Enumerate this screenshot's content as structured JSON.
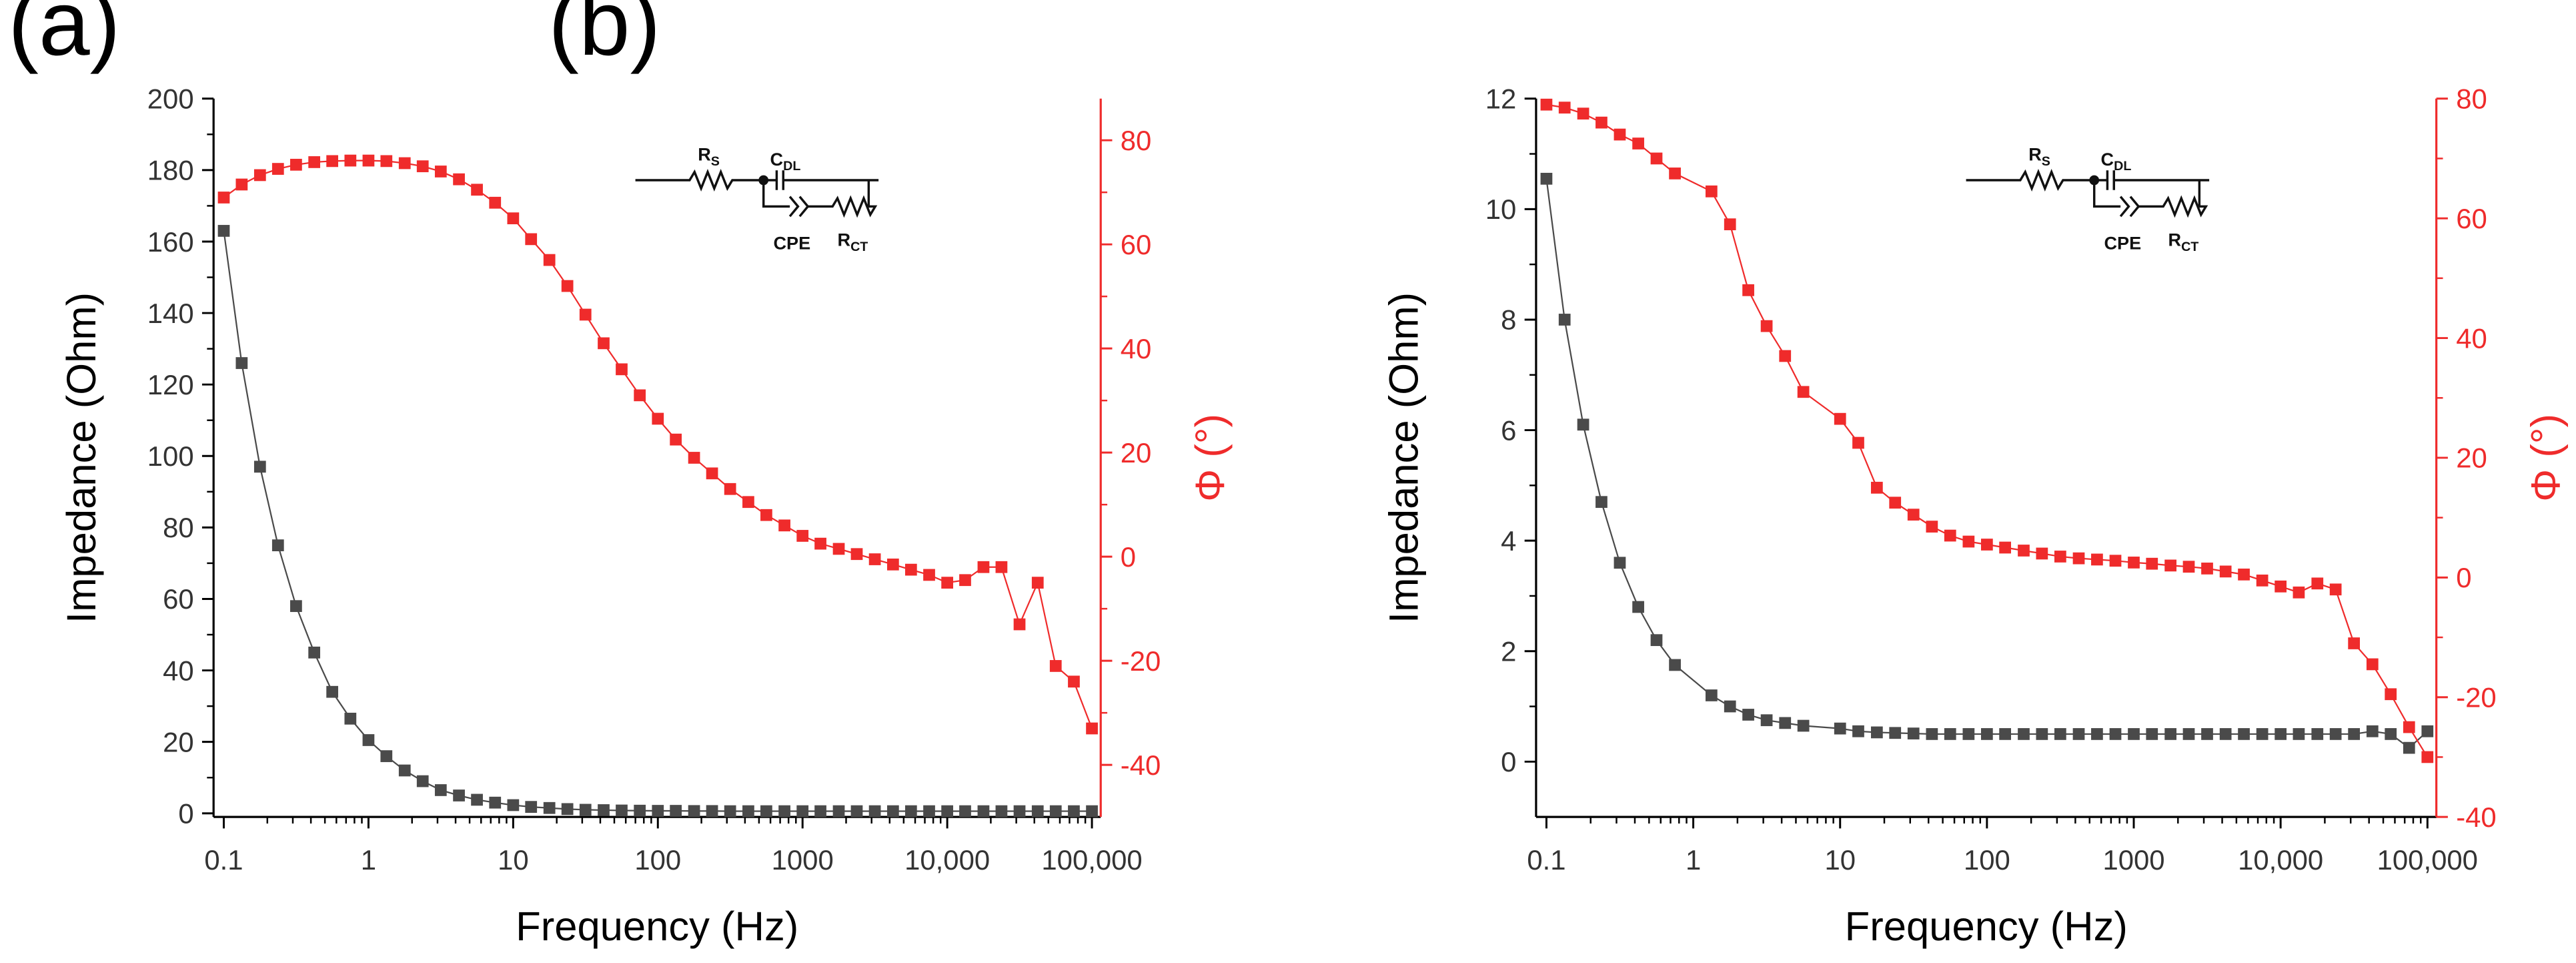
{
  "colors": {
    "impedance": "#4a4a4a",
    "phase": "#ef2b2b",
    "axis": "#000000",
    "phase_axis": "#ef2b2b"
  },
  "circuit": {
    "rs_label": "R",
    "rs_sub": "S",
    "cdl_label": "C",
    "cdl_sub": "DL",
    "cpe_label": "CPE",
    "rct_label": "R",
    "rct_sub": "CT"
  },
  "chart_data": [
    {
      "panel_label": "(a)",
      "type": "scatter",
      "xscale": "log",
      "xlabel": "Frequency (Hz)",
      "ylabel": "Impedance (Ohm)",
      "y2label": "Φ (°)",
      "xlim": [
        0.085,
        115000
      ],
      "ylim": [
        -1,
        200
      ],
      "y2lim": [
        -50,
        88
      ],
      "xticks": [
        0.1,
        1,
        10,
        100,
        1000,
        10000,
        100000
      ],
      "xticklabels": [
        "0.1",
        "1",
        "10",
        "100",
        "1000",
        "10,000",
        "100,000"
      ],
      "yticks": [
        0,
        20,
        40,
        60,
        80,
        100,
        120,
        140,
        160,
        180,
        200
      ],
      "yticklabels": [
        "0",
        "20",
        "40",
        "60",
        "80",
        "100",
        "120",
        "140",
        "160",
        "180",
        "200"
      ],
      "y2ticks": [
        -40,
        -20,
        0,
        20,
        40,
        60,
        80
      ],
      "y2ticklabels": [
        "-40",
        "-20",
        "0",
        "20",
        "40",
        "60",
        "80"
      ],
      "series": [
        {
          "name": "Impedance",
          "axis": "left",
          "x": [
            0.1,
            0.133,
            0.178,
            0.237,
            0.316,
            0.422,
            0.562,
            0.75,
            1,
            1.33,
            1.78,
            2.37,
            3.16,
            4.22,
            5.62,
            7.5,
            10,
            13.3,
            17.8,
            23.7,
            31.6,
            42.2,
            56.2,
            75,
            100,
            133,
            178,
            237,
            316,
            422,
            562,
            750,
            1000,
            1330,
            1780,
            2370,
            3160,
            4220,
            5620,
            7500,
            10000,
            13300,
            17800,
            23700,
            31600,
            42200,
            56200,
            75000,
            100000
          ],
          "y": [
            163,
            126,
            97,
            75,
            58,
            45,
            34,
            26.5,
            20.5,
            16,
            12,
            9,
            6.5,
            5,
            3.8,
            3,
            2.3,
            1.8,
            1.5,
            1.2,
            1.0,
            0.9,
            0.8,
            0.75,
            0.7,
            0.7,
            0.65,
            0.65,
            0.6,
            0.6,
            0.6,
            0.6,
            0.6,
            0.6,
            0.6,
            0.6,
            0.6,
            0.6,
            0.6,
            0.6,
            0.6,
            0.6,
            0.6,
            0.6,
            0.6,
            0.6,
            0.6,
            0.6,
            0.6
          ]
        },
        {
          "name": "Phase",
          "axis": "right",
          "x": [
            0.1,
            0.133,
            0.178,
            0.237,
            0.316,
            0.422,
            0.562,
            0.75,
            1,
            1.33,
            1.78,
            2.37,
            3.16,
            4.22,
            5.62,
            7.5,
            10,
            13.3,
            17.8,
            23.7,
            31.6,
            42.2,
            56.2,
            75,
            100,
            133,
            178,
            237,
            316,
            422,
            562,
            750,
            1000,
            1330,
            1780,
            2370,
            3160,
            4220,
            5620,
            7500,
            10000,
            13300,
            17800,
            23700,
            31600,
            42200,
            56200,
            75000,
            100000
          ],
          "y": [
            69,
            71.5,
            73.3,
            74.5,
            75.3,
            75.8,
            76,
            76.1,
            76.1,
            76,
            75.6,
            75,
            74,
            72.5,
            70.5,
            68,
            65,
            61,
            57,
            52,
            46.5,
            41,
            36,
            31,
            26.5,
            22.5,
            19,
            16,
            13,
            10.5,
            8,
            6,
            4,
            2.5,
            1.5,
            0.5,
            -0.5,
            -1.5,
            -2.5,
            -3.5,
            -5,
            -4.5,
            -2,
            -2,
            -13,
            -5,
            -21,
            -24,
            -33
          ]
        }
      ]
    },
    {
      "panel_label": "(b)",
      "type": "scatter",
      "xscale": "log",
      "xlabel": "Frequency (Hz)",
      "ylabel": "Impedance (Ohm)",
      "y2label": "Φ (°)",
      "xlim": [
        0.085,
        115000
      ],
      "ylim": [
        -1,
        12
      ],
      "y2lim": [
        -40,
        80
      ],
      "xticks": [
        0.1,
        1,
        10,
        100,
        1000,
        10000,
        100000
      ],
      "xticklabels": [
        "0.1",
        "1",
        "10",
        "100",
        "1000",
        "10,000",
        "100,000"
      ],
      "yticks": [
        0,
        2,
        4,
        6,
        8,
        10,
        12
      ],
      "yticklabels": [
        "0",
        "2",
        "4",
        "6",
        "8",
        "10",
        "12"
      ],
      "y2ticks": [
        -40,
        -20,
        0,
        20,
        40,
        60,
        80
      ],
      "y2ticklabels": [
        "-40",
        "-20",
        "0",
        "20",
        "40",
        "60",
        "80"
      ],
      "series": [
        {
          "name": "Impedance",
          "axis": "left",
          "x": [
            0.1,
            0.133,
            0.178,
            0.237,
            0.316,
            0.422,
            0.562,
            0.75,
            1.33,
            1.78,
            2.37,
            3.16,
            4.22,
            5.62,
            10,
            13.3,
            17.8,
            23.7,
            31.6,
            42.2,
            56.2,
            75,
            100,
            133,
            178,
            237,
            316,
            422,
            562,
            750,
            1000,
            1330,
            1780,
            2370,
            3160,
            4220,
            5620,
            7500,
            10000,
            13300,
            17800,
            23700,
            31600,
            42200,
            56200,
            75000,
            100000
          ],
          "y": [
            10.55,
            8.0,
            6.1,
            4.7,
            3.6,
            2.8,
            2.2,
            1.75,
            1.2,
            1.0,
            0.85,
            0.75,
            0.7,
            0.65,
            0.6,
            0.55,
            0.53,
            0.52,
            0.51,
            0.5,
            0.5,
            0.5,
            0.5,
            0.5,
            0.5,
            0.5,
            0.5,
            0.5,
            0.5,
            0.5,
            0.5,
            0.5,
            0.5,
            0.5,
            0.5,
            0.5,
            0.5,
            0.5,
            0.5,
            0.5,
            0.5,
            0.5,
            0.5,
            0.55,
            0.5,
            0.25,
            0.55
          ]
        },
        {
          "name": "Phase",
          "axis": "right",
          "x": [
            0.1,
            0.133,
            0.178,
            0.237,
            0.316,
            0.422,
            0.562,
            0.75,
            1.33,
            1.78,
            2.37,
            3.16,
            4.22,
            5.62,
            10,
            13.3,
            17.8,
            23.7,
            31.6,
            42.2,
            56.2,
            75,
            100,
            133,
            178,
            237,
            316,
            422,
            562,
            750,
            1000,
            1330,
            1780,
            2370,
            3160,
            4220,
            5620,
            7500,
            10000,
            13300,
            17800,
            23700,
            31600,
            42200,
            56200,
            75000,
            100000
          ],
          "y": [
            79,
            78.5,
            77.5,
            76,
            74,
            72.5,
            70,
            67.5,
            64.5,
            59,
            48,
            42,
            37,
            31,
            26.5,
            22.5,
            15,
            12.5,
            10.5,
            8.5,
            7,
            6,
            5.5,
            5,
            4.5,
            4,
            3.5,
            3.2,
            3.0,
            2.8,
            2.5,
            2.3,
            2.0,
            1.8,
            1.5,
            1.0,
            0.5,
            -0.5,
            -1.5,
            -2.5,
            -1,
            -2,
            -11,
            -14.5,
            -19.5,
            -25,
            -30
          ]
        }
      ]
    }
  ]
}
